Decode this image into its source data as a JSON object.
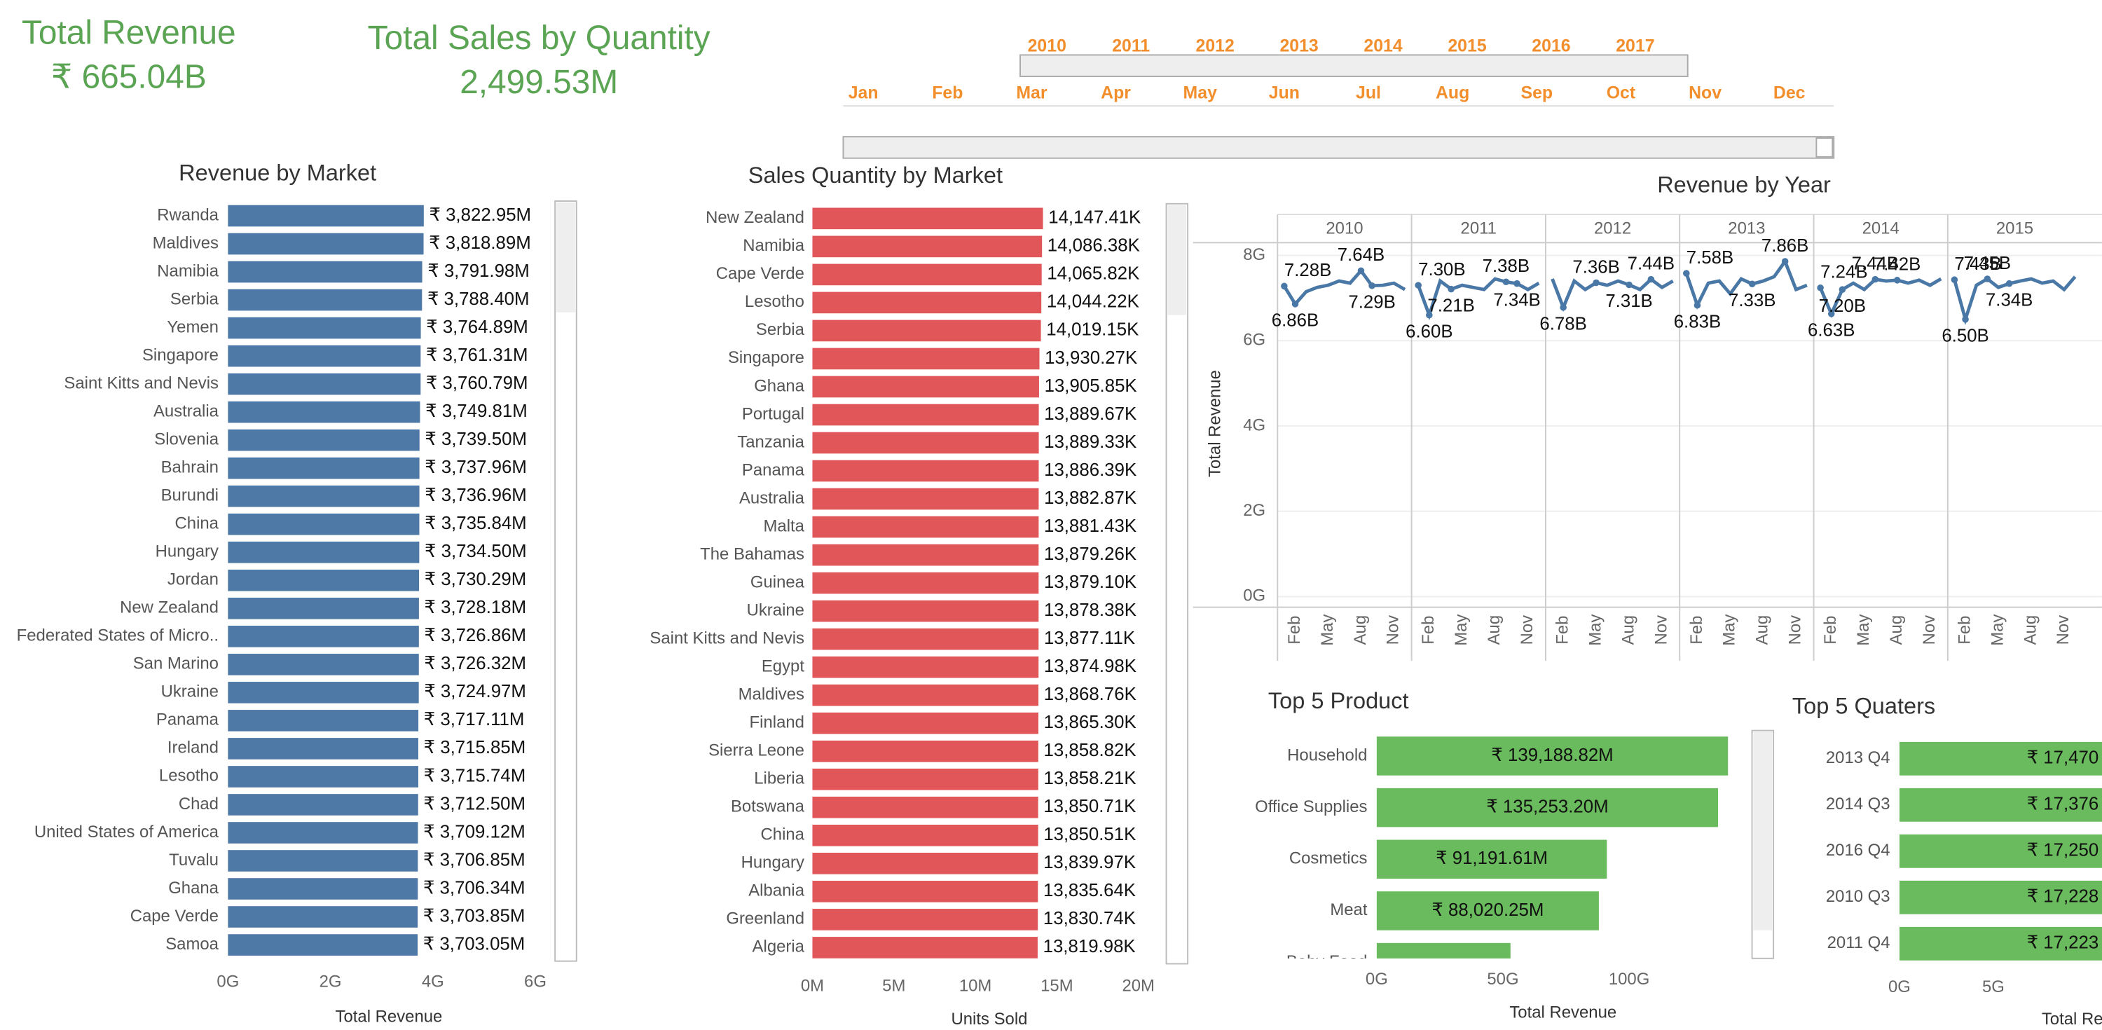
{
  "kpis": [
    {
      "title": "Total Revenue",
      "value": "₹ 665.04B"
    },
    {
      "title": "Total Sales by Quantity",
      "value": "2,499.53M"
    }
  ],
  "filters": {
    "years": [
      "2010",
      "2011",
      "2012",
      "2013",
      "2014",
      "2015",
      "2016",
      "2017"
    ],
    "months": [
      "Jan",
      "Feb",
      "Mar",
      "Apr",
      "May",
      "Jun",
      "Jul",
      "Aug",
      "Sep",
      "Oct",
      "Nov",
      "Dec"
    ]
  },
  "chart_data": [
    {
      "type": "hbar",
      "title": "Revenue by Market",
      "x_label": "Total Revenue",
      "color": "#4e79a7",
      "categories": [
        "Rwanda",
        "Maldives",
        "Namibia",
        "Serbia",
        "Yemen",
        "Singapore",
        "Saint Kitts and Nevis",
        "Australia",
        "Slovenia",
        "Bahrain",
        "Burundi",
        "China",
        "Hungary",
        "Jordan",
        "New Zealand",
        "Federated States of Micro..",
        "San Marino",
        "Ukraine",
        "Panama",
        "Ireland",
        "Lesotho",
        "Chad",
        "United States of America",
        "Tuvalu",
        "Ghana",
        "Cape Verde",
        "Samoa"
      ],
      "values": [
        3.82295,
        3.81889,
        3.79198,
        3.7884,
        3.76489,
        3.76131,
        3.76079,
        3.74981,
        3.7395,
        3.73796,
        3.73696,
        3.73584,
        3.7345,
        3.73029,
        3.72818,
        3.72686,
        3.72632,
        3.72497,
        3.71711,
        3.71585,
        3.71574,
        3.7125,
        3.70912,
        3.70685,
        3.70634,
        3.70385,
        3.70305
      ],
      "value_labels": [
        "₹ 3,822.95M",
        "₹ 3,818.89M",
        "₹ 3,791.98M",
        "₹ 3,788.40M",
        "₹ 3,764.89M",
        "₹ 3,761.31M",
        "₹ 3,760.79M",
        "₹ 3,749.81M",
        "₹ 3,739.50M",
        "₹ 3,737.96M",
        "₹ 3,736.96M",
        "₹ 3,735.84M",
        "₹ 3,734.50M",
        "₹ 3,730.29M",
        "₹ 3,728.18M",
        "₹ 3,726.86M",
        "₹ 3,726.32M",
        "₹ 3,724.97M",
        "₹ 3,717.11M",
        "₹ 3,715.85M",
        "₹ 3,715.74M",
        "₹ 3,712.50M",
        "₹ 3,709.12M",
        "₹ 3,706.85M",
        "₹ 3,706.34M",
        "₹ 3,703.85M",
        "₹ 3,703.05M"
      ],
      "xlim": [
        0,
        6.15
      ],
      "xticks": [
        {
          "value": 0,
          "label": "0G"
        },
        {
          "value": 2,
          "label": "2G"
        },
        {
          "value": 4,
          "label": "4G"
        },
        {
          "value": 6,
          "label": "6G"
        }
      ]
    },
    {
      "type": "hbar",
      "title": "Sales Quantity by Market",
      "x_label": "Units Sold",
      "color": "#e15759",
      "categories": [
        "New Zealand",
        "Namibia",
        "Cape Verde",
        "Lesotho",
        "Serbia",
        "Singapore",
        "Ghana",
        "Portugal",
        "Tanzania",
        "Panama",
        "Australia",
        "Malta",
        "The Bahamas",
        "Guinea",
        "Ukraine",
        "Saint Kitts and Nevis",
        "Egypt",
        "Maldives",
        "Finland",
        "Sierra Leone",
        "Liberia",
        "Botswana",
        "China",
        "Hungary",
        "Albania",
        "Greenland",
        "Algeria"
      ],
      "values": [
        14.14741,
        14.08638,
        14.06582,
        14.04422,
        14.01915,
        13.93027,
        13.90585,
        13.88967,
        13.88933,
        13.88639,
        13.88287,
        13.88143,
        13.87926,
        13.8791,
        13.87838,
        13.87711,
        13.87498,
        13.86876,
        13.8653,
        13.85882,
        13.85821,
        13.85071,
        13.85051,
        13.83997,
        13.83564,
        13.83074,
        13.81998
      ],
      "value_labels": [
        "14,147.41K",
        "14,086.38K",
        "14,065.82K",
        "14,044.22K",
        "14,019.15K",
        "13,930.27K",
        "13,905.85K",
        "13,889.67K",
        "13,889.33K",
        "13,886.39K",
        "13,882.87K",
        "13,881.43K",
        "13,879.26K",
        "13,879.10K",
        "13,878.38K",
        "13,877.11K",
        "13,874.98K",
        "13,868.76K",
        "13,865.30K",
        "13,858.82K",
        "13,858.21K",
        "13,850.71K",
        "13,850.51K",
        "13,839.97K",
        "13,835.64K",
        "13,830.74K",
        "13,819.98K"
      ],
      "xlim": [
        0,
        21.3
      ],
      "xticks": [
        {
          "value": 0,
          "label": "0M"
        },
        {
          "value": 5,
          "label": "5M"
        },
        {
          "value": 10,
          "label": "10M"
        },
        {
          "value": 15,
          "label": "15M"
        },
        {
          "value": 20,
          "label": "20M"
        }
      ]
    },
    {
      "type": "line",
      "title": "Revenue by Year",
      "y_label": "Total Revenue",
      "color": "#4a78a6",
      "grid": true,
      "ylim": [
        -0.25,
        8.3
      ],
      "yticks": [
        {
          "value": 0,
          "label": "0G"
        },
        {
          "value": 2,
          "label": "2G"
        },
        {
          "value": 4,
          "label": "4G"
        },
        {
          "value": 6,
          "label": "6G"
        },
        {
          "value": 8,
          "label": "8G"
        }
      ],
      "panels": [
        {
          "name": "2010",
          "categories": [
            null,
            "Feb",
            null,
            null,
            "May",
            null,
            null,
            "Aug",
            null,
            null,
            "Nov",
            null
          ],
          "values": [
            7.28,
            6.86,
            7.15,
            7.25,
            7.3,
            7.4,
            7.35,
            7.64,
            7.29,
            7.3,
            7.35,
            7.2
          ],
          "value_labels": [
            "7.28B",
            "6.86B",
            null,
            null,
            null,
            null,
            null,
            "7.64B",
            "7.29B",
            null,
            null,
            null
          ]
        },
        {
          "name": "2011",
          "categories": [
            null,
            "Feb",
            null,
            null,
            "May",
            null,
            null,
            "Aug",
            null,
            null,
            "Nov",
            null
          ],
          "values": [
            7.3,
            6.6,
            7.4,
            7.21,
            7.3,
            7.25,
            7.2,
            7.45,
            7.38,
            7.34,
            7.2,
            7.35
          ],
          "value_labels": [
            "7.30B",
            "6.60B",
            null,
            "7.21B",
            null,
            null,
            null,
            null,
            "7.38B",
            "7.34B",
            null,
            null
          ]
        },
        {
          "name": "2012",
          "categories": [
            null,
            "Feb",
            null,
            null,
            "May",
            null,
            null,
            "Aug",
            null,
            null,
            "Nov",
            null
          ],
          "values": [
            7.45,
            6.78,
            7.4,
            7.2,
            7.36,
            7.3,
            7.4,
            7.31,
            7.2,
            7.44,
            7.25,
            7.4
          ],
          "value_labels": [
            null,
            "6.78B",
            null,
            null,
            "7.36B",
            null,
            null,
            "7.31B",
            null,
            "7.44B",
            null,
            null
          ]
        },
        {
          "name": "2013",
          "categories": [
            null,
            "Feb",
            null,
            null,
            "May",
            null,
            null,
            "Aug",
            null,
            null,
            "Nov",
            null
          ],
          "values": [
            7.58,
            6.83,
            7.35,
            7.4,
            7.1,
            7.45,
            7.33,
            7.4,
            7.5,
            7.86,
            7.2,
            7.3
          ],
          "value_labels": [
            "7.58B",
            "6.83B",
            null,
            null,
            null,
            null,
            "7.33B",
            null,
            null,
            "7.86B",
            null,
            null
          ]
        },
        {
          "name": "2014",
          "categories": [
            null,
            "Feb",
            null,
            null,
            "May",
            null,
            null,
            "Aug",
            null,
            null,
            "Nov",
            null
          ],
          "values": [
            7.24,
            6.63,
            7.2,
            7.35,
            7.2,
            7.44,
            7.4,
            7.42,
            7.35,
            7.42,
            7.3,
            7.45
          ],
          "value_labels": [
            "7.24B",
            "6.63B",
            "7.20B",
            null,
            null,
            "7.44B",
            null,
            "7.42B",
            null,
            null,
            null,
            null
          ]
        },
        {
          "name": "2015",
          "categories": [
            null,
            "Feb",
            null,
            null,
            "May",
            null,
            null,
            "Aug",
            null,
            null,
            "Nov",
            null
          ],
          "values": [
            7.43,
            6.5,
            7.3,
            7.45,
            7.25,
            7.34,
            7.4,
            7.45,
            7.35,
            7.4,
            7.2,
            7.5
          ],
          "value_labels": [
            "7.43B",
            "6.50B",
            null,
            "7.45B",
            null,
            "7.34B",
            null,
            null,
            null,
            null,
            null,
            null
          ]
        }
      ]
    },
    {
      "type": "hbar",
      "title": "Top 5 Product",
      "x_label": "Total Revenue",
      "color": "#6abb5d",
      "categories": [
        "Household",
        "Office Supplies",
        "Cosmetics",
        "Meat",
        "Baby Food"
      ],
      "values": [
        139.18882,
        135.2532,
        91.19161,
        88.02025,
        53
      ],
      "value_labels": [
        "₹ 139,188.82M",
        "₹ 135,253.20M",
        "₹ 91,191.61M",
        "₹ 88,020.25M",
        null
      ],
      "xlim": [
        0,
        145
      ],
      "xticks": [
        {
          "value": 0,
          "label": "0G"
        },
        {
          "value": 50,
          "label": "50G"
        },
        {
          "value": 100,
          "label": "100G"
        }
      ]
    },
    {
      "type": "hbar",
      "title": "Top 5 Quaters",
      "x_label": "Total Revenue",
      "color": "#6abb5d",
      "categories": [
        "2013 Q4",
        "2014 Q3",
        "2016 Q4",
        "2010 Q3",
        "2011 Q4"
      ],
      "values": [
        17.47,
        17.376,
        17.25,
        17.228,
        17.223
      ],
      "value_labels": [
        "₹ 17,470",
        "₹ 17,376",
        "₹ 17,250",
        "₹ 17,228",
        "₹ 17,223"
      ],
      "xlim": [
        0,
        22
      ],
      "xticks": [
        {
          "value": 0,
          "label": "0G"
        },
        {
          "value": 5,
          "label": "5G"
        }
      ]
    }
  ]
}
